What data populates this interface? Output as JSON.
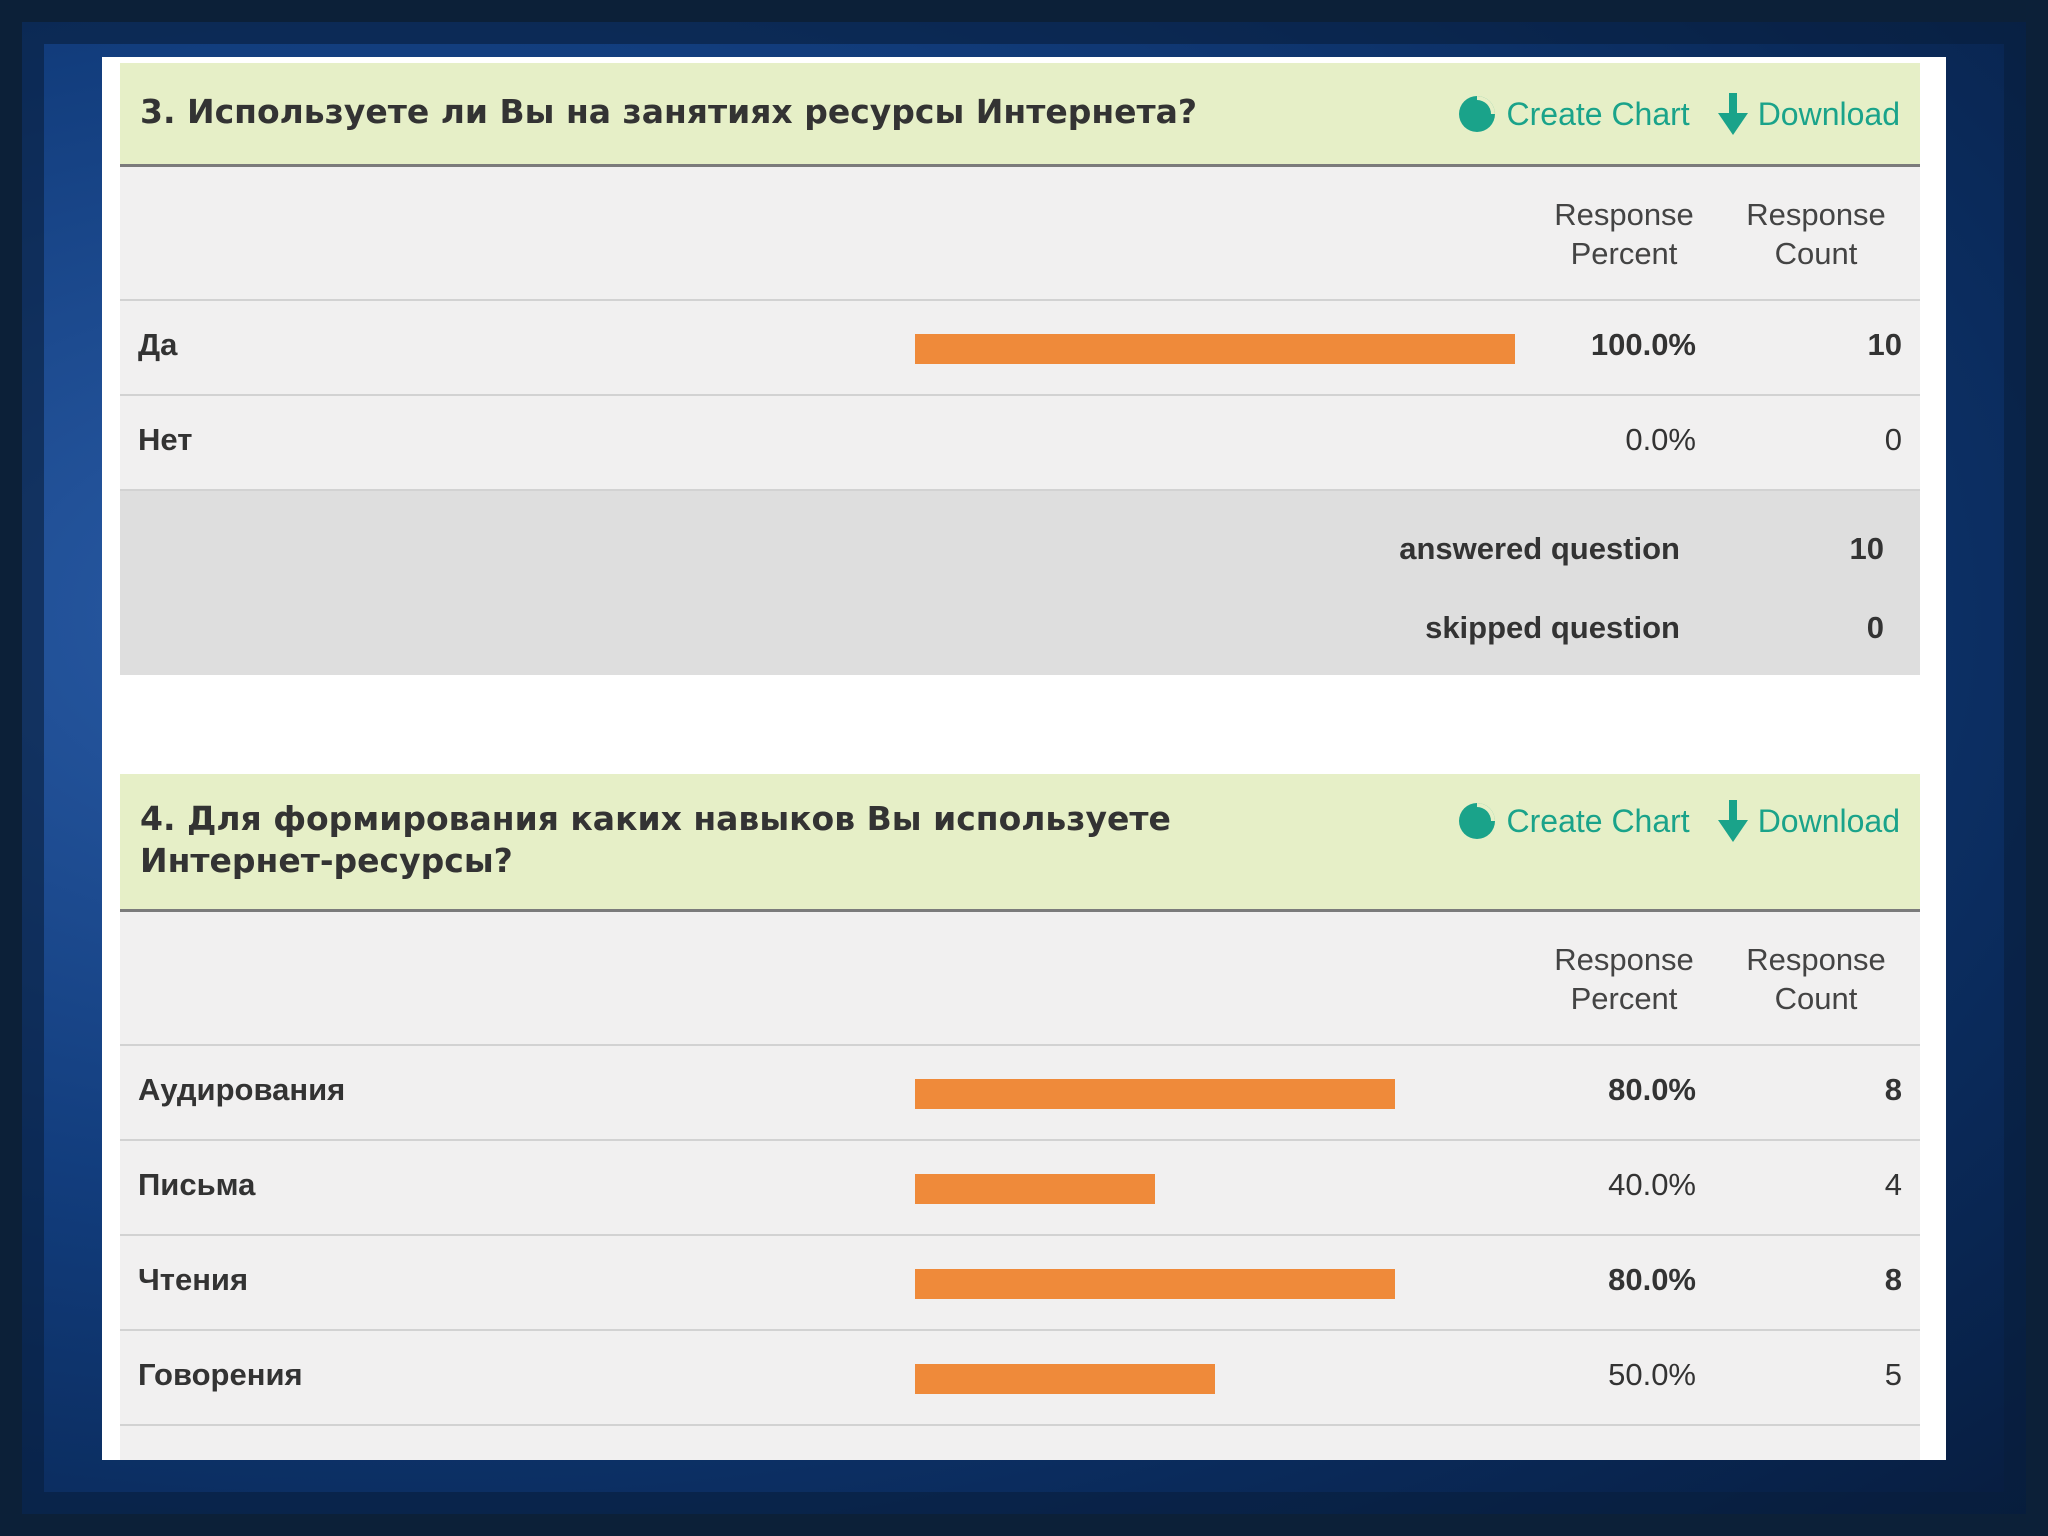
{
  "colors": {
    "bar": "#ef8a3a",
    "header_bg": "#e6efc7",
    "action_text": "#1aa38a"
  },
  "actions": {
    "create_chart": "Create Chart",
    "download": "Download"
  },
  "columns": {
    "response_percent": "Response\nPercent",
    "response_count": "Response\nCount"
  },
  "q3": {
    "title": "3. Используете ли Вы на занятиях ресурсы Интернета?",
    "rows": [
      {
        "label": "Да",
        "percent_text": "100.0%",
        "percent": 100.0,
        "count": "10"
      },
      {
        "label": "Нет",
        "percent_text": "0.0%",
        "percent": 0.0,
        "count": "0"
      }
    ],
    "summary": {
      "answered_label": "answered question",
      "answered_value": "10",
      "skipped_label": "skipped question",
      "skipped_value": "0"
    }
  },
  "q4": {
    "title": "4. Для формирования каких навыков Вы используете Интернет-ресурсы?",
    "rows": [
      {
        "label": "Аудирования",
        "percent_text": "80.0%",
        "percent": 80.0,
        "count": "8"
      },
      {
        "label": "Письма",
        "percent_text": "40.0%",
        "percent": 40.0,
        "count": "4"
      },
      {
        "label": "Чтения",
        "percent_text": "80.0%",
        "percent": 80.0,
        "count": "8"
      },
      {
        "label": "Говорения",
        "percent_text": "50.0%",
        "percent": 50.0,
        "count": "5"
      }
    ]
  }
}
